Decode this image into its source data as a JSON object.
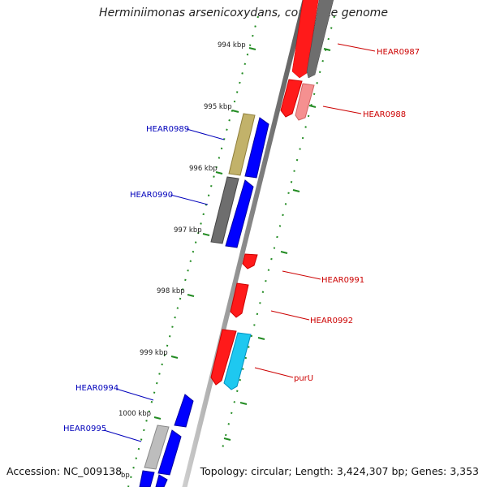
{
  "title": "Herminiimonas arsenicoxydans, complete genome",
  "footer": {
    "accession": "Accession: NC_009138",
    "summary": "Topology: circular; Length: 3,424,307 bp; Genes: 3,353"
  },
  "ruler_ticks": [
    "994 kbp",
    "995 kbp",
    "996 kbp",
    "997 kbp",
    "998 kbp",
    "999 kbp",
    "1000 kbp"
  ],
  "gene_labels": [
    {
      "id": "HEAR0987",
      "strand": "forward"
    },
    {
      "id": "HEAR0988",
      "strand": "forward"
    },
    {
      "id": "HEAR0989",
      "strand": "reverse"
    },
    {
      "id": "HEAR0990",
      "strand": "reverse"
    },
    {
      "id": "HEAR0991",
      "strand": "forward"
    },
    {
      "id": "HEAR0992",
      "strand": "forward"
    },
    {
      "id": "purU",
      "strand": "forward"
    },
    {
      "id": "HEAR0994",
      "strand": "reverse"
    },
    {
      "id": "HEAR0995",
      "strand": "reverse"
    }
  ],
  "colors": {
    "forward_label": "#cc0000",
    "reverse_label": "#0000bb",
    "forward_cds": "#ff0000",
    "reverse_cds": "#0000ff",
    "ruler_tick": "#228b22",
    "backbone": "#8c8c8c"
  }
}
